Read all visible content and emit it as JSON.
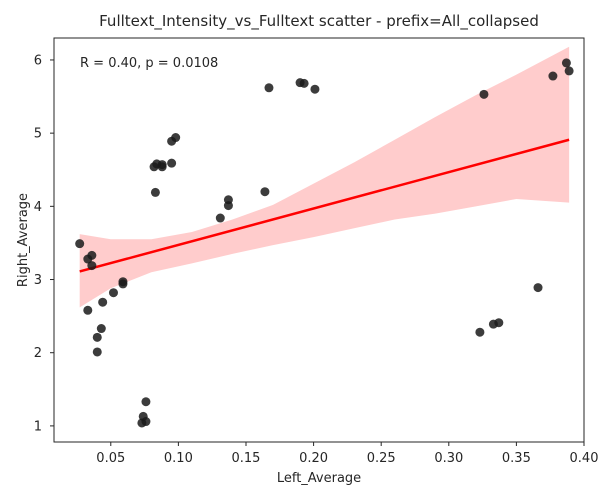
{
  "chart_data": {
    "type": "scatter",
    "title": "Fulltext_Intensity_vs_Fulltext scatter - prefix=All_collapsed",
    "xlabel": "Left_Average",
    "ylabel": "Right_Average",
    "xlim": [
      0.008,
      0.4
    ],
    "ylim": [
      0.78,
      6.3
    ],
    "xticks": [
      0.05,
      0.1,
      0.15,
      0.2,
      0.25,
      0.3,
      0.35,
      0.4
    ],
    "xtick_labels": [
      "0.05",
      "0.10",
      "0.15",
      "0.20",
      "0.25",
      "0.30",
      "0.35",
      "0.40"
    ],
    "yticks": [
      1,
      2,
      3,
      4,
      5,
      6
    ],
    "ytick_labels": [
      "1",
      "2",
      "3",
      "4",
      "5",
      "6"
    ],
    "grid": false,
    "annotation": "R = 0.40, p = 0.0108",
    "point_color": "#1a1a1a",
    "regression_color": "#ff0000",
    "ci_color": "#ffcccc",
    "x": [
      0.027,
      0.033,
      0.036,
      0.036,
      0.033,
      0.044,
      0.052,
      0.059,
      0.059,
      0.04,
      0.04,
      0.043,
      0.076,
      0.074,
      0.076,
      0.073,
      0.082,
      0.084,
      0.088,
      0.088,
      0.095,
      0.098,
      0.095,
      0.083,
      0.131,
      0.137,
      0.137,
      0.164,
      0.167,
      0.19,
      0.193,
      0.201,
      0.326,
      0.377,
      0.387,
      0.389,
      0.323,
      0.333,
      0.337,
      0.366
    ],
    "y": [
      3.49,
      3.28,
      3.33,
      3.19,
      2.58,
      2.69,
      2.82,
      2.94,
      2.97,
      2.21,
      2.01,
      2.33,
      1.33,
      1.13,
      1.06,
      1.04,
      4.54,
      4.58,
      4.57,
      4.54,
      4.59,
      4.94,
      4.89,
      4.19,
      3.84,
      4.09,
      4.01,
      4.2,
      5.62,
      5.69,
      5.68,
      5.6,
      5.53,
      5.78,
      5.96,
      5.85,
      2.28,
      2.39,
      2.41,
      2.89
    ],
    "regression": {
      "x": [
        0.027,
        0.389
      ],
      "y": [
        3.11,
        4.91
      ]
    },
    "ci_band": {
      "x": [
        0.027,
        0.05,
        0.08,
        0.11,
        0.14,
        0.17,
        0.2,
        0.23,
        0.26,
        0.29,
        0.32,
        0.35,
        0.389
      ],
      "upper": [
        3.62,
        3.55,
        3.55,
        3.65,
        3.82,
        4.02,
        4.31,
        4.6,
        4.91,
        5.22,
        5.52,
        5.8,
        6.18
      ],
      "lower": [
        2.62,
        2.88,
        3.1,
        3.22,
        3.35,
        3.47,
        3.58,
        3.7,
        3.82,
        3.9,
        4.0,
        4.1,
        4.05
      ]
    }
  }
}
